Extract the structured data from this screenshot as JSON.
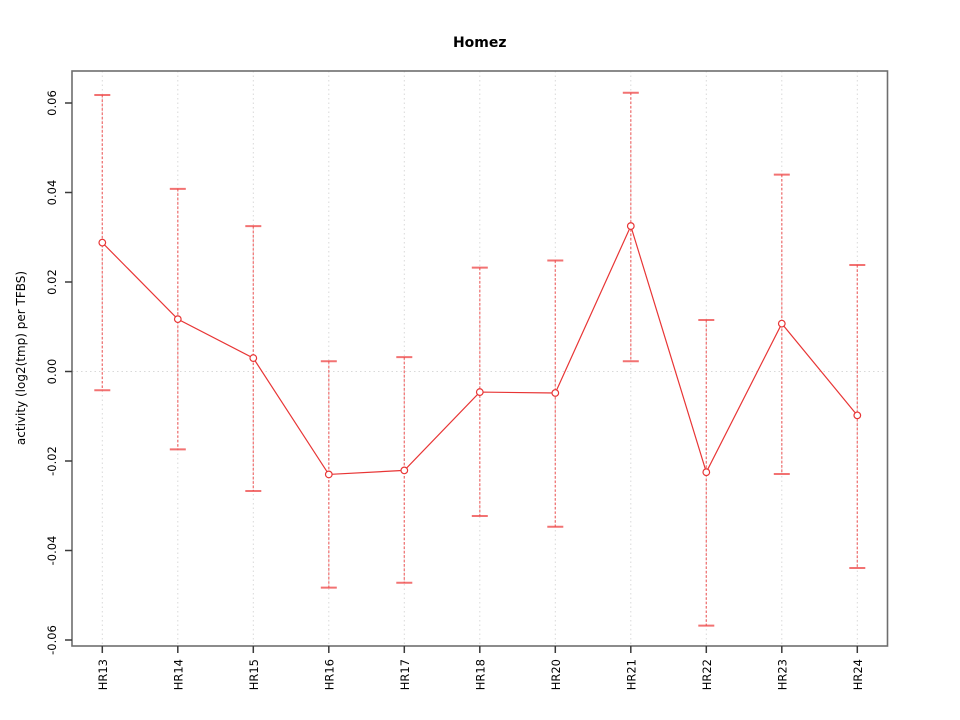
{
  "chart": {
    "title": "Homez",
    "ylabel": "activity (log2(tmp) per TFBS)",
    "colors": {
      "line": "#e83535",
      "marker_stroke": "#e83535",
      "marker_fill": "#ffffff",
      "error_bar": "#f06a6a",
      "error_cap": "#ee4444",
      "frame": "#6e6e6e",
      "tick": "#3a3a3a",
      "grid": "#d9d9d9",
      "text": "#000000"
    }
  },
  "chart_data": {
    "type": "line",
    "title": "Homez",
    "xlabel": "",
    "ylabel": "activity (log2(tmp) per TFBS)",
    "categories": [
      "HR13",
      "HR14",
      "HR15",
      "HR16",
      "HR17",
      "HR18",
      "HR20",
      "HR21",
      "HR22",
      "HR23",
      "HR24"
    ],
    "series": [
      {
        "name": "activity",
        "values": [
          0.0288,
          0.0117,
          0.003,
          -0.023,
          -0.0221,
          -0.0046,
          -0.0048,
          0.0325,
          -0.0225,
          0.0107,
          -0.0098
        ]
      }
    ],
    "error_upper": [
      0.0618,
      0.0408,
      0.0325,
      0.0023,
      0.0032,
      0.0232,
      0.0248,
      0.0623,
      0.0115,
      0.044,
      0.0238
    ],
    "error_lower": [
      -0.0042,
      -0.0174,
      -0.0267,
      -0.0483,
      -0.0472,
      -0.0323,
      -0.0347,
      0.0023,
      -0.0568,
      -0.0229,
      -0.0439
    ],
    "ylim": [
      -0.067,
      0.067
    ],
    "yticks": [
      -0.06,
      -0.04,
      -0.02,
      0.0,
      0.02,
      0.04,
      0.06
    ],
    "ytick_labels": [
      "-0.06",
      "-0.04",
      "-0.02",
      "0.00",
      "0.02",
      "0.04",
      "0.06"
    ],
    "grid": "vertical dotted gridline at each category; horizontal dotted line at y=0",
    "legend": "none",
    "marker": "open-circle",
    "error_bars": true
  }
}
